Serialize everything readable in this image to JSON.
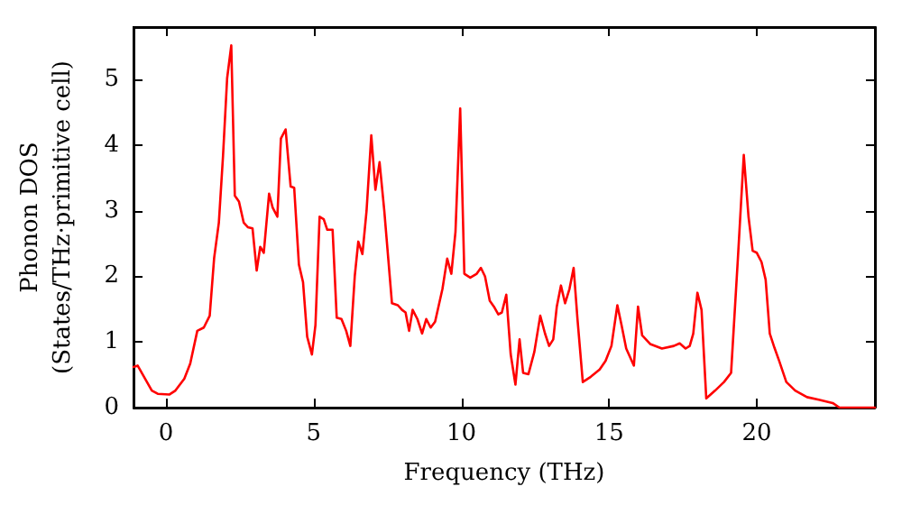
{
  "chart_data": {
    "type": "line",
    "xlabel": "Frequency (THz)",
    "ylabel": "Phonon DOS\n(States/THz·primitive cell)",
    "xlim": [
      -1.1,
      24
    ],
    "xticks": [
      0,
      5,
      10,
      15,
      20
    ],
    "ylim": [
      0,
      5.8
    ],
    "yticks": [
      0,
      1,
      2,
      3,
      4,
      5
    ],
    "grid": false,
    "marker": "none",
    "line_style": "solid",
    "series": [
      {
        "color": "#ff0000",
        "x": [
          -1.1,
          -0.96,
          -0.48,
          -0.28,
          0.12,
          0.32,
          0.62,
          0.82,
          1.06,
          1.28,
          1.48,
          1.63,
          1.79,
          1.93,
          2.07,
          2.21,
          2.33,
          2.47,
          2.63,
          2.77,
          2.93,
          3.07,
          3.19,
          3.31,
          3.49,
          3.61,
          3.77,
          3.89,
          4.05,
          4.22,
          4.34,
          4.5,
          4.64,
          4.78,
          4.94,
          5.06,
          5.2,
          5.34,
          5.46,
          5.64,
          5.78,
          5.94,
          6.1,
          6.24,
          6.39,
          6.51,
          6.65,
          6.79,
          6.95,
          7.09,
          7.23,
          7.39,
          7.65,
          7.85,
          7.99,
          8.11,
          8.23,
          8.35,
          8.51,
          8.67,
          8.81,
          8.96,
          9.11,
          9.36,
          9.52,
          9.66,
          9.8,
          9.96,
          10.1,
          10.3,
          10.52,
          10.66,
          10.8,
          10.96,
          11.1,
          11.25,
          11.37,
          11.52,
          11.67,
          11.83,
          11.97,
          12.09,
          12.27,
          12.47,
          12.67,
          12.83,
          12.97,
          13.11,
          13.23,
          13.37,
          13.51,
          13.66,
          13.8,
          13.93,
          14.11,
          14.38,
          14.68,
          14.88,
          15.08,
          15.28,
          15.42,
          15.58,
          15.84,
          15.98,
          16.12,
          16.39,
          16.79,
          17.19,
          17.39,
          17.59,
          17.73,
          17.85,
          17.99,
          18.13,
          18.29,
          18.59,
          18.89,
          19.13,
          19.36,
          19.56,
          19.72,
          19.86,
          20.0,
          20.16,
          20.3,
          20.44,
          20.6,
          20.76,
          21.0,
          21.3,
          21.7,
          22.1,
          22.57,
          22.8,
          24
        ],
        "values": [
          0.62,
          0.64,
          0.26,
          0.21,
          0.2,
          0.26,
          0.44,
          0.67,
          1.17,
          1.22,
          1.4,
          2.28,
          2.82,
          3.83,
          5.02,
          5.52,
          3.23,
          3.14,
          2.82,
          2.75,
          2.73,
          2.09,
          2.45,
          2.36,
          3.26,
          3.05,
          2.91,
          4.1,
          4.24,
          3.37,
          3.35,
          2.18,
          1.91,
          1.08,
          0.81,
          1.26,
          2.91,
          2.87,
          2.71,
          2.71,
          1.37,
          1.35,
          1.17,
          0.94,
          2.0,
          2.53,
          2.34,
          3.0,
          4.15,
          3.32,
          3.74,
          3.0,
          1.59,
          1.56,
          1.49,
          1.45,
          1.17,
          1.49,
          1.35,
          1.13,
          1.35,
          1.22,
          1.31,
          1.81,
          2.27,
          2.04,
          2.68,
          4.56,
          2.04,
          1.98,
          2.04,
          2.13,
          2.0,
          1.63,
          1.54,
          1.42,
          1.45,
          1.72,
          0.81,
          0.35,
          1.04,
          0.53,
          0.51,
          0.85,
          1.4,
          1.13,
          0.94,
          1.04,
          1.54,
          1.86,
          1.59,
          1.81,
          2.13,
          1.35,
          0.39,
          0.47,
          0.58,
          0.71,
          0.94,
          1.56,
          1.26,
          0.9,
          0.64,
          1.54,
          1.1,
          0.97,
          0.9,
          0.94,
          0.98,
          0.9,
          0.94,
          1.13,
          1.75,
          1.49,
          0.14,
          0.26,
          0.39,
          0.53,
          2.27,
          3.85,
          2.91,
          2.39,
          2.36,
          2.22,
          1.95,
          1.13,
          0.91,
          0.71,
          0.39,
          0.26,
          0.16,
          0.12,
          0.07,
          0.0,
          0.0
        ]
      }
    ]
  }
}
